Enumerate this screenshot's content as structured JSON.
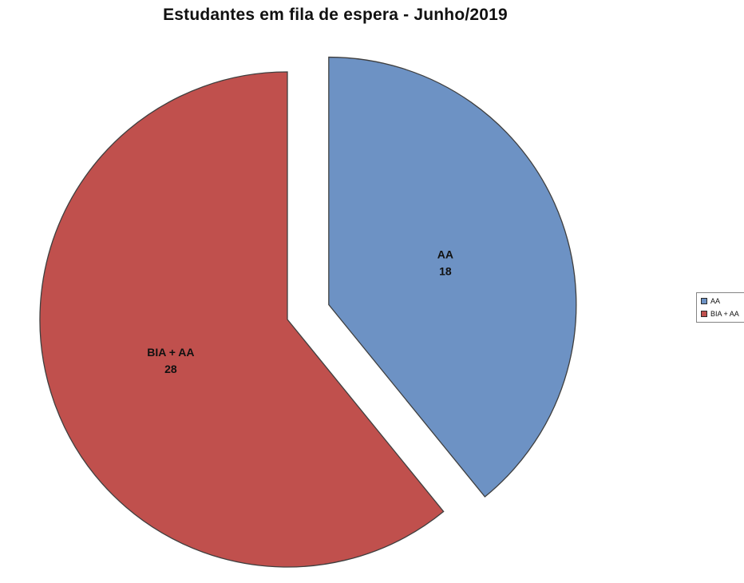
{
  "title": "Estudantes em fila de espera - Junho/2019",
  "chart_data": {
    "type": "pie",
    "title": "Estudantes em fila de espera - Junho/2019",
    "total": 46,
    "start_angle_deg": -90,
    "direction": "clockwise",
    "legend_position": "right",
    "background": "#ffffff",
    "slices": [
      {
        "label": "AA",
        "value": 18,
        "color": "#6D92C4",
        "border": "#3F3F3F",
        "exploded": true
      },
      {
        "label": "BIA + AA",
        "value": 28,
        "color": "#C0504D",
        "border": "#3F3F3F",
        "exploded": false
      }
    ]
  }
}
